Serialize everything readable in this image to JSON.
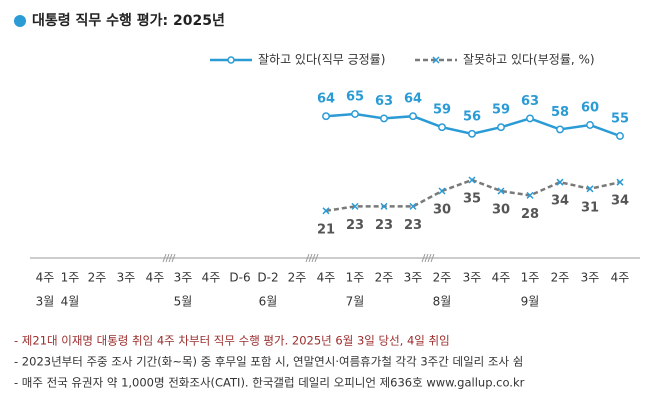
{
  "chart_data": {
    "type": "line",
    "title": "대통령 직무 수행 평가: 2025년",
    "categories": [
      "4주",
      "1주",
      "2주",
      "3주",
      "4주",
      "3주",
      "4주",
      "D-6",
      "D-2",
      "2주",
      "4주",
      "1주",
      "2주",
      "3주",
      "2주",
      "3주",
      "4주",
      "1주",
      "2주",
      "3주",
      "4주"
    ],
    "months": [
      "3월",
      "4월",
      null,
      null,
      null,
      "5월",
      null,
      null,
      "6월",
      null,
      null,
      "7월",
      null,
      null,
      "8월",
      null,
      null,
      "9월",
      null,
      null,
      null
    ],
    "series": [
      {
        "name": "잘하고 있다(직무 긍정률)",
        "color": "#2b9bd6",
        "marker": "circle",
        "label_position": "above",
        "values": [
          null,
          null,
          null,
          null,
          null,
          null,
          null,
          null,
          null,
          null,
          64,
          65,
          63,
          64,
          59,
          56,
          59,
          63,
          58,
          60,
          55
        ]
      },
      {
        "name": "잘못하고 있다(부정률, %)",
        "color": "#7a7a7a",
        "marker": "x",
        "dashed": true,
        "label_position": "below",
        "values": [
          null,
          null,
          null,
          null,
          null,
          null,
          null,
          null,
          null,
          null,
          21,
          23,
          23,
          23,
          30,
          35,
          30,
          28,
          34,
          31,
          34
        ]
      }
    ],
    "ylim": [
      0,
      100
    ],
    "notes": [
      "- 제21대 이재명 대통령 취임 4주 차부터 직무 수행 평가. 2025년 6월 3일 당선, 4일 취임",
      "- 2023년부터 주중 조사 기간(화~목) 중 후무일 포함 시, 연말연시·여름휴가철 각각 3주간 데일리 조사 쉼",
      "- 매주 전국 유권자 약 1,000명 전화조사(CATI). 한국갤럽 데일리 오피니언 제636호 www.gallup.co.kr"
    ]
  }
}
